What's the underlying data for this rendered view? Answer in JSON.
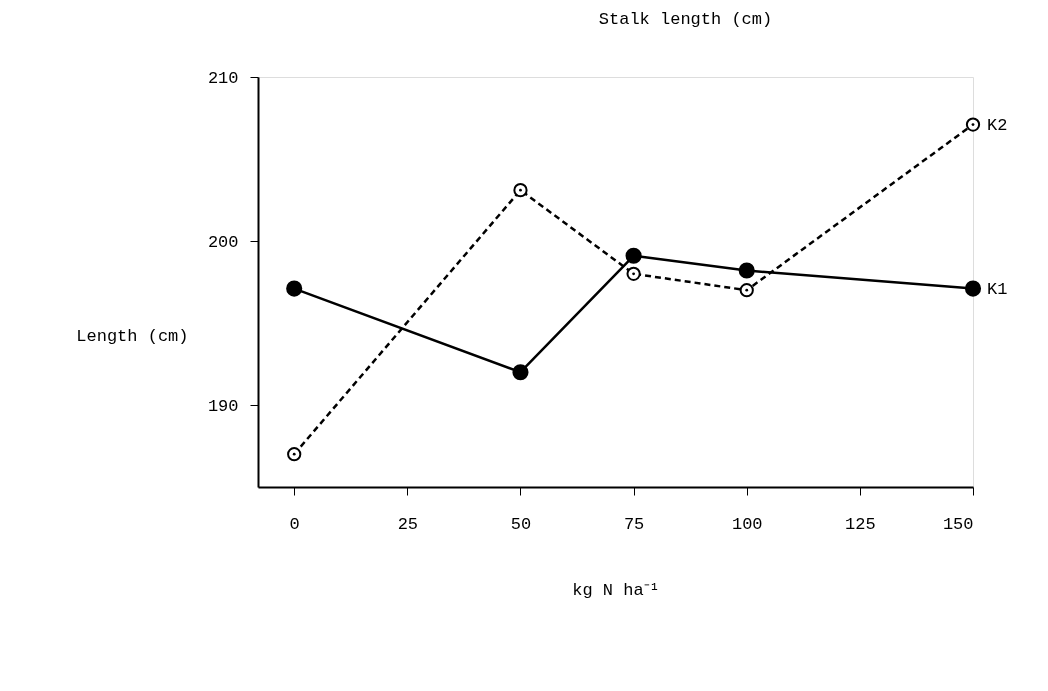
{
  "chart_data": {
    "type": "line",
    "title": "Stalk length (cm)",
    "xlabel": "kg N ha⁻¹",
    "ylabel": "Length (cm)",
    "x": [
      0,
      50,
      75,
      100,
      150
    ],
    "series": [
      {
        "name": "K1",
        "color": "#000000",
        "line_style": "solid",
        "values": [
          197.1,
          192.0,
          199.1,
          198.2,
          197.1
        ]
      },
      {
        "name": "K2",
        "color": "#000000",
        "line_style": "dashed",
        "values": [
          187.0,
          203.1,
          198.0,
          197.0,
          207.1
        ]
      }
    ],
    "xlim": [
      -8,
      150
    ],
    "xticks": [
      0,
      25,
      50,
      75,
      100,
      125,
      150
    ],
    "ylim": [
      185,
      210
    ],
    "yticks": [
      190,
      200,
      210
    ],
    "marker": "circle",
    "grid": false,
    "legend": false
  }
}
